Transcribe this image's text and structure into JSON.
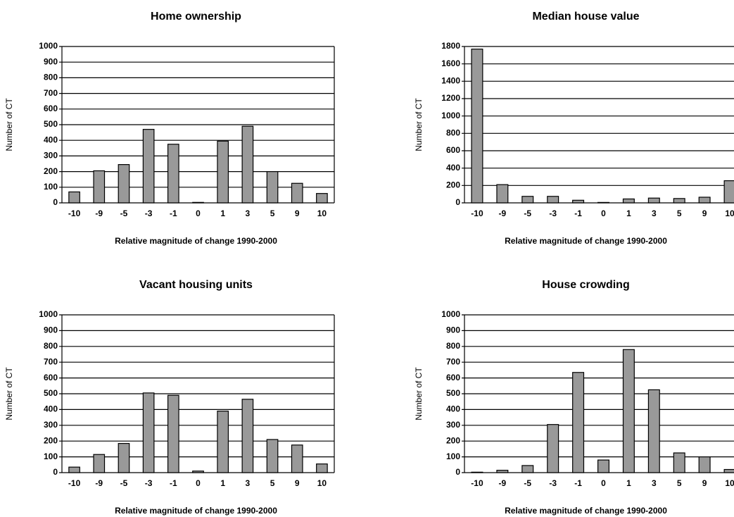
{
  "chart_data": [
    {
      "type": "bar",
      "title": "Home ownership",
      "xlabel": "Relative magnitude of change 1990-2000",
      "ylabel": "Number of CT",
      "categories": [
        "-10",
        "-9",
        "-5",
        "-3",
        "-1",
        "0",
        "1",
        "3",
        "5",
        "9",
        "10"
      ],
      "values": [
        70,
        205,
        245,
        470,
        375,
        3,
        395,
        490,
        200,
        125,
        60
      ],
      "color": "#999999",
      "ylim": [
        0,
        1000
      ],
      "yticks": [
        0,
        100,
        200,
        300,
        400,
        500,
        600,
        700,
        800,
        900,
        1000
      ],
      "grid": true
    },
    {
      "type": "bar",
      "title": "Median house value",
      "xlabel": "Relative magnitude of change 1990-2000",
      "ylabel": "Number of CT",
      "categories": [
        "-10",
        "-9",
        "-5",
        "-3",
        "-1",
        "0",
        "1",
        "3",
        "5",
        "9",
        "10"
      ],
      "values": [
        1770,
        210,
        75,
        75,
        30,
        5,
        45,
        55,
        50,
        65,
        255
      ],
      "color": "#999999",
      "ylim": [
        0,
        1800
      ],
      "yticks": [
        0,
        200,
        400,
        600,
        800,
        1000,
        1200,
        1400,
        1600,
        1800
      ],
      "grid": true
    },
    {
      "type": "bar",
      "title": "Vacant housing units",
      "xlabel": "Relative magnitude of change 1990-2000",
      "ylabel": "Number of CT",
      "categories": [
        "-10",
        "-9",
        "-5",
        "-3",
        "-1",
        "0",
        "1",
        "3",
        "5",
        "9",
        "10"
      ],
      "values": [
        35,
        115,
        185,
        505,
        490,
        10,
        390,
        465,
        210,
        175,
        55
      ],
      "color": "#999999",
      "ylim": [
        0,
        1000
      ],
      "yticks": [
        0,
        100,
        200,
        300,
        400,
        500,
        600,
        700,
        800,
        900,
        1000
      ],
      "grid": true
    },
    {
      "type": "bar",
      "title": "House crowding",
      "xlabel": "Relative magnitude of change 1990-2000",
      "ylabel": "Number of CT",
      "categories": [
        "-10",
        "-9",
        "-5",
        "-3",
        "-1",
        "0",
        "1",
        "3",
        "5",
        "9",
        "10"
      ],
      "values": [
        3,
        15,
        45,
        305,
        635,
        80,
        780,
        525,
        125,
        100,
        20
      ],
      "color": "#999999",
      "ylim": [
        0,
        1000
      ],
      "yticks": [
        0,
        100,
        200,
        300,
        400,
        500,
        600,
        700,
        800,
        900,
        1000
      ],
      "grid": true
    }
  ]
}
